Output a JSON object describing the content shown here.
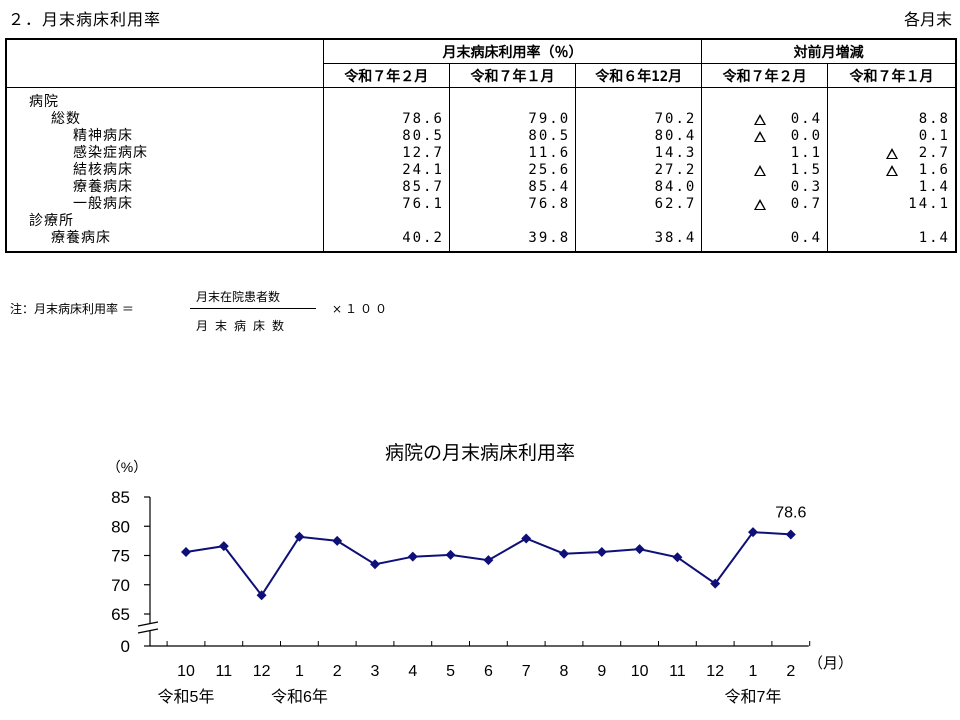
{
  "header": {
    "title": "２．月末病床利用率",
    "right_label": "各月末"
  },
  "table": {
    "group_headers": {
      "rate": "月末病床利用率（％）",
      "diff": "対前月増減"
    },
    "columns": [
      "令和７年２月",
      "令和７年１月",
      "令和６年12月",
      "令和７年２月",
      "令和７年１月"
    ],
    "rows": [
      {
        "label": "病院",
        "indent": 0,
        "values": [
          "",
          "",
          "",
          "",
          ""
        ],
        "neg": [
          false,
          false
        ]
      },
      {
        "label": "総数",
        "indent": 1,
        "values": [
          "78.6",
          "79.0",
          "70.2",
          "0.4",
          "8.8"
        ],
        "neg": [
          true,
          false
        ]
      },
      {
        "label": "精神病床",
        "indent": 2,
        "values": [
          "80.5",
          "80.5",
          "80.4",
          "0.0",
          "0.1"
        ],
        "neg": [
          true,
          false
        ]
      },
      {
        "label": "感染症病床",
        "indent": 2,
        "values": [
          "12.7",
          "11.6",
          "14.3",
          "1.1",
          "2.7"
        ],
        "neg": [
          false,
          true
        ]
      },
      {
        "label": "結核病床",
        "indent": 2,
        "values": [
          "24.1",
          "25.6",
          "27.2",
          "1.5",
          "1.6"
        ],
        "neg": [
          true,
          true
        ]
      },
      {
        "label": "療養病床",
        "indent": 2,
        "values": [
          "85.7",
          "85.4",
          "84.0",
          "0.3",
          "1.4"
        ],
        "neg": [
          false,
          false
        ]
      },
      {
        "label": "一般病床",
        "indent": 2,
        "values": [
          "76.1",
          "76.8",
          "62.7",
          "0.7",
          "14.1"
        ],
        "neg": [
          true,
          false
        ]
      },
      {
        "label": "診療所",
        "indent": 0,
        "values": [
          "",
          "",
          "",
          "",
          ""
        ],
        "neg": [
          false,
          false
        ]
      },
      {
        "label": "療養病床",
        "indent": 1,
        "values": [
          "40.2",
          "39.8",
          "38.4",
          "0.4",
          "1.4"
        ],
        "neg": [
          false,
          false
        ]
      }
    ]
  },
  "note": {
    "prefix": "注：月末病床利用率 ＝",
    "numerator": "月末在院患者数",
    "denominator": "月末病床数",
    "multiplier": "×１００"
  },
  "chart_data": {
    "type": "line",
    "title": "病院の月末病床利用率",
    "ylabel": "（%）",
    "xlabel": "（月）",
    "ylim": [
      65,
      85
    ],
    "yticks": [
      85,
      80,
      75,
      70,
      65,
      0
    ],
    "categories": [
      "10",
      "11",
      "12",
      "1",
      "2",
      "3",
      "4",
      "5",
      "6",
      "7",
      "8",
      "9",
      "10",
      "11",
      "12",
      "1",
      "2"
    ],
    "era_labels": [
      "令和5年",
      "令和6年",
      "令和7年"
    ],
    "series": [
      {
        "values": [
          75.6,
          76.6,
          68.2,
          78.2,
          77.5,
          73.5,
          74.8,
          75.1,
          74.2,
          77.9,
          75.3,
          75.6,
          76.1,
          74.7,
          70.2,
          79.0,
          78.6
        ]
      }
    ],
    "last_value_label": "78.6",
    "color": "#0f0f78",
    "axis_break": true
  }
}
